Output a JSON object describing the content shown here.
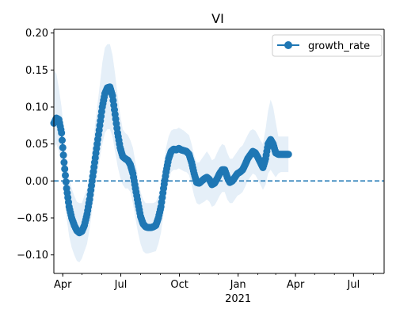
{
  "chart_data": {
    "type": "line",
    "title": "VI",
    "xlabel": "",
    "ylabel": "",
    "ylim": [
      -0.125,
      0.205
    ],
    "xlim": [
      "2020-03-18",
      "2021-08-18"
    ],
    "x_ticks": [
      {
        "date": "2020-04-01",
        "label": "Apr"
      },
      {
        "date": "2020-07-01",
        "label": "Jul"
      },
      {
        "date": "2020-10-01",
        "label": "Oct"
      },
      {
        "date": "2021-01-01",
        "label": "Jan"
      },
      {
        "date": "2021-04-01",
        "label": "Apr"
      },
      {
        "date": "2021-07-01",
        "label": "Jul"
      }
    ],
    "x_year_label": {
      "date": "2021-01-01",
      "label": "2021"
    },
    "y_ticks": [
      {
        "value": 0.2,
        "label": "0.20"
      },
      {
        "value": 0.15,
        "label": "0.15"
      },
      {
        "value": 0.1,
        "label": "0.10"
      },
      {
        "value": 0.05,
        "label": "0.05"
      },
      {
        "value": 0.0,
        "label": "0.00"
      },
      {
        "value": -0.05,
        "label": "−0.05"
      },
      {
        "value": -0.1,
        "label": "−0.10"
      }
    ],
    "reference_line": {
      "y": 0.0,
      "style": "dashed"
    },
    "legend": {
      "position": "top-right",
      "entries": [
        "growth_rate"
      ]
    },
    "series": [
      {
        "name": "growth_rate",
        "color": "#1f77b4",
        "band_color": "#dce9f5",
        "points": [
          {
            "x": "2020-03-18",
            "y": 0.078,
            "lo": 0.045,
            "hi": 0.15
          },
          {
            "x": "2020-03-22",
            "y": 0.085,
            "lo": 0.05,
            "hi": 0.145
          },
          {
            "x": "2020-03-26",
            "y": 0.083,
            "lo": 0.04,
            "hi": 0.125
          },
          {
            "x": "2020-03-30",
            "y": 0.065,
            "lo": 0.02,
            "hi": 0.1
          },
          {
            "x": "2020-04-03",
            "y": 0.025,
            "lo": -0.02,
            "hi": 0.065
          },
          {
            "x": "2020-04-07",
            "y": -0.01,
            "lo": -0.05,
            "hi": 0.03
          },
          {
            "x": "2020-04-11",
            "y": -0.035,
            "lo": -0.075,
            "hi": 0.005
          },
          {
            "x": "2020-04-15",
            "y": -0.05,
            "lo": -0.09,
            "hi": -0.01
          },
          {
            "x": "2020-04-19",
            "y": -0.06,
            "lo": -0.1,
            "hi": -0.02
          },
          {
            "x": "2020-04-23",
            "y": -0.067,
            "lo": -0.108,
            "hi": -0.028
          },
          {
            "x": "2020-04-27",
            "y": -0.07,
            "lo": -0.11,
            "hi": -0.03
          },
          {
            "x": "2020-05-01",
            "y": -0.068,
            "lo": -0.105,
            "hi": -0.03
          },
          {
            "x": "2020-05-05",
            "y": -0.06,
            "lo": -0.095,
            "hi": -0.02
          },
          {
            "x": "2020-05-09",
            "y": -0.045,
            "lo": -0.085,
            "hi": -0.01
          },
          {
            "x": "2020-05-13",
            "y": -0.025,
            "lo": -0.065,
            "hi": 0.01
          },
          {
            "x": "2020-05-17",
            "y": 0.0,
            "lo": -0.04,
            "hi": 0.04
          },
          {
            "x": "2020-05-21",
            "y": 0.025,
            "lo": -0.015,
            "hi": 0.07
          },
          {
            "x": "2020-05-25",
            "y": 0.05,
            "lo": 0.01,
            "hi": 0.1
          },
          {
            "x": "2020-05-29",
            "y": 0.075,
            "lo": 0.03,
            "hi": 0.13
          },
          {
            "x": "2020-06-02",
            "y": 0.1,
            "lo": 0.05,
            "hi": 0.16
          },
          {
            "x": "2020-06-06",
            "y": 0.118,
            "lo": 0.065,
            "hi": 0.18
          },
          {
            "x": "2020-06-10",
            "y": 0.126,
            "lo": 0.07,
            "hi": 0.185
          },
          {
            "x": "2020-06-14",
            "y": 0.127,
            "lo": 0.07,
            "hi": 0.185
          },
          {
            "x": "2020-06-18",
            "y": 0.115,
            "lo": 0.06,
            "hi": 0.17
          },
          {
            "x": "2020-06-22",
            "y": 0.09,
            "lo": 0.04,
            "hi": 0.145
          },
          {
            "x": "2020-06-26",
            "y": 0.065,
            "lo": 0.02,
            "hi": 0.115
          },
          {
            "x": "2020-06-30",
            "y": 0.045,
            "lo": 0.005,
            "hi": 0.09
          },
          {
            "x": "2020-07-04",
            "y": 0.033,
            "lo": -0.005,
            "hi": 0.07
          },
          {
            "x": "2020-07-08",
            "y": 0.03,
            "lo": -0.01,
            "hi": 0.065
          },
          {
            "x": "2020-07-12",
            "y": 0.028,
            "lo": -0.01,
            "hi": 0.062
          },
          {
            "x": "2020-07-16",
            "y": 0.022,
            "lo": -0.015,
            "hi": 0.055
          },
          {
            "x": "2020-07-20",
            "y": 0.01,
            "lo": -0.03,
            "hi": 0.045
          },
          {
            "x": "2020-07-24",
            "y": -0.01,
            "lo": -0.05,
            "hi": 0.025
          },
          {
            "x": "2020-07-28",
            "y": -0.03,
            "lo": -0.07,
            "hi": 0.005
          },
          {
            "x": "2020-08-01",
            "y": -0.048,
            "lo": -0.085,
            "hi": -0.015
          },
          {
            "x": "2020-08-05",
            "y": -0.058,
            "lo": -0.095,
            "hi": -0.025
          },
          {
            "x": "2020-08-09",
            "y": -0.062,
            "lo": -0.098,
            "hi": -0.03
          },
          {
            "x": "2020-08-13",
            "y": -0.063,
            "lo": -0.098,
            "hi": -0.03
          },
          {
            "x": "2020-08-17",
            "y": -0.063,
            "lo": -0.097,
            "hi": -0.03
          },
          {
            "x": "2020-08-21",
            "y": -0.062,
            "lo": -0.096,
            "hi": -0.03
          },
          {
            "x": "2020-08-25",
            "y": -0.06,
            "lo": -0.095,
            "hi": -0.028
          },
          {
            "x": "2020-08-29",
            "y": -0.05,
            "lo": -0.085,
            "hi": -0.02
          },
          {
            "x": "2020-09-02",
            "y": -0.035,
            "lo": -0.07,
            "hi": -0.005
          },
          {
            "x": "2020-09-06",
            "y": -0.01,
            "lo": -0.045,
            "hi": 0.02
          },
          {
            "x": "2020-09-10",
            "y": 0.012,
            "lo": -0.02,
            "hi": 0.045
          },
          {
            "x": "2020-09-14",
            "y": 0.03,
            "lo": 0.0,
            "hi": 0.06
          },
          {
            "x": "2020-09-18",
            "y": 0.04,
            "lo": 0.012,
            "hi": 0.068
          },
          {
            "x": "2020-09-22",
            "y": 0.043,
            "lo": 0.015,
            "hi": 0.07
          },
          {
            "x": "2020-09-26",
            "y": 0.042,
            "lo": 0.015,
            "hi": 0.07
          },
          {
            "x": "2020-09-30",
            "y": 0.044,
            "lo": 0.017,
            "hi": 0.072
          },
          {
            "x": "2020-10-04",
            "y": 0.042,
            "lo": 0.015,
            "hi": 0.07
          },
          {
            "x": "2020-10-08",
            "y": 0.041,
            "lo": 0.013,
            "hi": 0.068
          },
          {
            "x": "2020-10-12",
            "y": 0.04,
            "lo": 0.012,
            "hi": 0.065
          },
          {
            "x": "2020-10-16",
            "y": 0.036,
            "lo": 0.008,
            "hi": 0.062
          },
          {
            "x": "2020-10-20",
            "y": 0.025,
            "lo": -0.005,
            "hi": 0.05
          },
          {
            "x": "2020-10-24",
            "y": 0.01,
            "lo": -0.02,
            "hi": 0.035
          },
          {
            "x": "2020-10-28",
            "y": -0.002,
            "lo": -0.03,
            "hi": 0.025
          },
          {
            "x": "2020-11-01",
            "y": -0.003,
            "lo": -0.032,
            "hi": 0.025
          },
          {
            "x": "2020-11-05",
            "y": 0.0,
            "lo": -0.03,
            "hi": 0.03
          },
          {
            "x": "2020-11-09",
            "y": 0.003,
            "lo": -0.028,
            "hi": 0.035
          },
          {
            "x": "2020-11-13",
            "y": 0.005,
            "lo": -0.025,
            "hi": 0.04
          },
          {
            "x": "2020-11-17",
            "y": 0.002,
            "lo": -0.028,
            "hi": 0.035
          },
          {
            "x": "2020-11-21",
            "y": -0.005,
            "lo": -0.035,
            "hi": 0.028
          },
          {
            "x": "2020-11-25",
            "y": -0.003,
            "lo": -0.033,
            "hi": 0.03
          },
          {
            "x": "2020-11-29",
            "y": 0.003,
            "lo": -0.027,
            "hi": 0.038
          },
          {
            "x": "2020-12-03",
            "y": 0.01,
            "lo": -0.02,
            "hi": 0.045
          },
          {
            "x": "2020-12-07",
            "y": 0.015,
            "lo": -0.015,
            "hi": 0.05
          },
          {
            "x": "2020-12-11",
            "y": 0.015,
            "lo": -0.015,
            "hi": 0.048
          },
          {
            "x": "2020-12-15",
            "y": 0.005,
            "lo": -0.025,
            "hi": 0.038
          },
          {
            "x": "2020-12-19",
            "y": -0.002,
            "lo": -0.03,
            "hi": 0.03
          },
          {
            "x": "2020-12-23",
            "y": 0.0,
            "lo": -0.03,
            "hi": 0.03
          },
          {
            "x": "2020-12-27",
            "y": 0.005,
            "lo": -0.025,
            "hi": 0.035
          },
          {
            "x": "2020-12-31",
            "y": 0.01,
            "lo": -0.02,
            "hi": 0.04
          },
          {
            "x": "2021-01-04",
            "y": 0.012,
            "lo": -0.018,
            "hi": 0.045
          },
          {
            "x": "2021-01-08",
            "y": 0.015,
            "lo": -0.015,
            "hi": 0.048
          },
          {
            "x": "2021-01-12",
            "y": 0.022,
            "lo": -0.008,
            "hi": 0.055
          },
          {
            "x": "2021-01-16",
            "y": 0.03,
            "lo": 0.0,
            "hi": 0.062
          },
          {
            "x": "2021-01-20",
            "y": 0.035,
            "lo": 0.005,
            "hi": 0.068
          },
          {
            "x": "2021-01-24",
            "y": 0.04,
            "lo": 0.01,
            "hi": 0.07
          },
          {
            "x": "2021-01-28",
            "y": 0.038,
            "lo": 0.008,
            "hi": 0.068
          },
          {
            "x": "2021-02-01",
            "y": 0.032,
            "lo": 0.002,
            "hi": 0.062
          },
          {
            "x": "2021-02-05",
            "y": 0.025,
            "lo": -0.005,
            "hi": 0.055
          },
          {
            "x": "2021-02-09",
            "y": 0.018,
            "lo": -0.012,
            "hi": 0.05
          },
          {
            "x": "2021-02-13",
            "y": 0.03,
            "lo": -0.005,
            "hi": 0.07
          },
          {
            "x": "2021-02-17",
            "y": 0.05,
            "lo": 0.01,
            "hi": 0.095
          },
          {
            "x": "2021-02-21",
            "y": 0.056,
            "lo": 0.015,
            "hi": 0.11
          },
          {
            "x": "2021-02-25",
            "y": 0.05,
            "lo": 0.01,
            "hi": 0.1
          },
          {
            "x": "2021-03-01",
            "y": 0.038,
            "lo": 0.005,
            "hi": 0.08
          },
          {
            "x": "2021-03-05",
            "y": 0.036,
            "lo": 0.01,
            "hi": 0.06
          },
          {
            "x": "2021-03-09",
            "y": 0.036,
            "lo": 0.012,
            "hi": 0.06
          },
          {
            "x": "2021-03-13",
            "y": 0.036,
            "lo": 0.012,
            "hi": 0.06
          },
          {
            "x": "2021-03-17",
            "y": 0.036,
            "lo": 0.012,
            "hi": 0.06
          },
          {
            "x": "2021-03-21",
            "y": 0.036,
            "lo": 0.012,
            "hi": 0.06
          }
        ]
      }
    ]
  }
}
